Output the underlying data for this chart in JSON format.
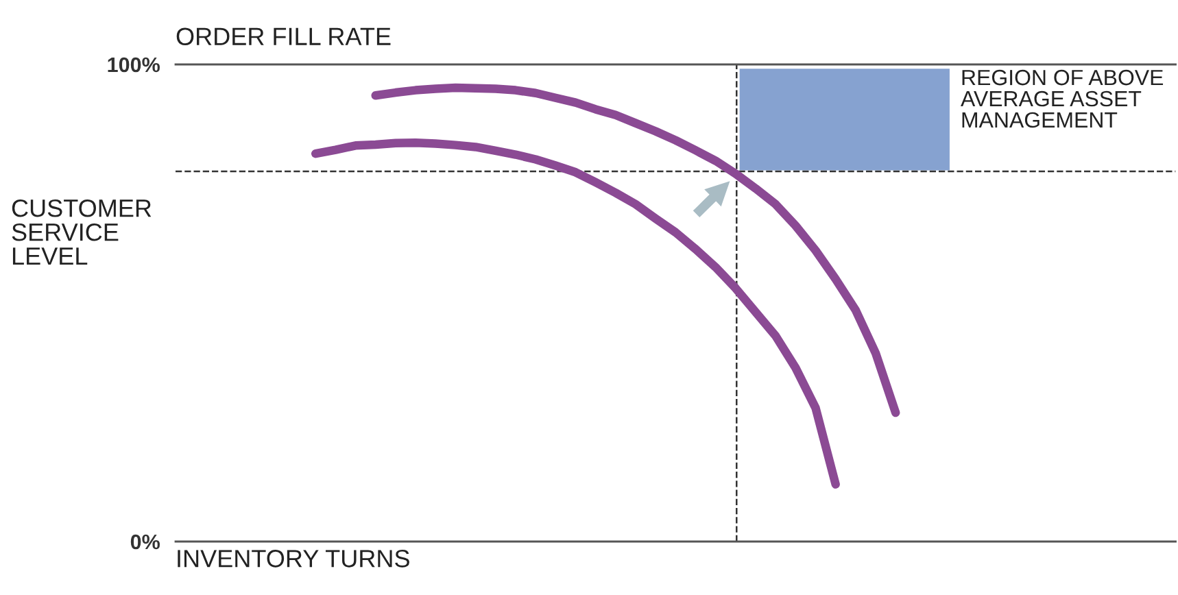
{
  "chart_data": {
    "type": "line",
    "xlabel": "INVENTORY TURNS",
    "ylabel": "CUSTOMER\nSERVICE\nLEVEL",
    "annotations": [
      "ORDER FILL RATE",
      "REGION OF ABOVE\nAVERAGE ASSET\nMANAGEMENT"
    ],
    "categories": [
      null,
      null,
      null,
      null,
      null,
      null,
      null,
      null,
      null,
      null,
      null,
      null,
      null,
      null,
      null,
      null,
      null,
      null,
      null,
      null,
      null,
      null,
      null,
      null,
      null,
      null,
      null,
      null,
      null,
      null,
      null,
      null,
      null,
      null,
      null,
      null,
      null,
      null,
      null,
      null,
      null,
      null,
      null,
      null,
      null,
      null,
      null,
      null,
      null,
      null,
      null
    ],
    "ylim": [
      0,
      100
    ],
    "yticks": [
      {
        "value": 0,
        "label": "0%"
      },
      {
        "value": 100,
        "label": "100%"
      }
    ],
    "tick_labels": "y",
    "marker": "none",
    "line_style": "solid",
    "ref_lines": [
      {
        "axis": "y",
        "value": 77.6,
        "line_style": "dashed",
        "color": "#333333"
      }
    ],
    "series": [
      {
        "color": "#8b4a94",
        "values": [
          null,
          null,
          null,
          null,
          null,
          null,
          null,
          null,
          null,
          null,
          93.5,
          94.1,
          94.6,
          94.9,
          95.1,
          95.0,
          94.9,
          94.6,
          94.0,
          93.0,
          92.0,
          90.6,
          89.4,
          87.7,
          86.0,
          84.1,
          82.0,
          79.8,
          77.1,
          74.0,
          70.7,
          66.2,
          61.0,
          55.0,
          48.5,
          39.5,
          27.0,
          null,
          null,
          null,
          null,
          null,
          null,
          null,
          null,
          null,
          null,
          null,
          null,
          null,
          null
        ]
      },
      {
        "color": "#8b4a94",
        "values": [
          null,
          null,
          null,
          null,
          null,
          null,
          null,
          81.3,
          82.1,
          83.0,
          83.2,
          83.5,
          83.6,
          83.4,
          83.1,
          82.7,
          81.9,
          81.1,
          80.1,
          78.8,
          77.4,
          75.3,
          73.1,
          70.7,
          67.7,
          64.8,
          61.3,
          57.5,
          53.1,
          48.1,
          43.1,
          36.4,
          28.0,
          12.0,
          null,
          null,
          null,
          null,
          null,
          null,
          null,
          null,
          null,
          null,
          null,
          null,
          null,
          null,
          null,
          null,
          null
        ]
      }
    ]
  }
}
